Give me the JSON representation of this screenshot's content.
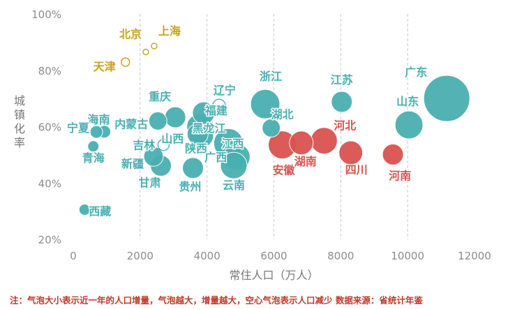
{
  "chart_data": {
    "type": "scatter",
    "subtype": "bubble",
    "xlabel": "常住人口（万人）",
    "ylabel": "城镇化率",
    "xlim": [
      0,
      12000
    ],
    "ylim": [
      20,
      100
    ],
    "xticks": [
      "0",
      "2000",
      "4000",
      "6000",
      "8000",
      "10000",
      "12000"
    ],
    "yticks": [
      "20%",
      "40%",
      "60%",
      "80%",
      "100%"
    ],
    "grid": "vertical dashed",
    "colors": {
      "gold": "#c8a21e",
      "teal": "#4aafb1",
      "red": "#d9534f",
      "axis": "#8c8c8c"
    },
    "points": [
      {
        "label": "上海",
        "x": 2420,
        "y": 88.6,
        "size": 1,
        "group": "gold",
        "hollow": true
      },
      {
        "label": "北京",
        "x": 2170,
        "y": 86.5,
        "size": 1,
        "group": "gold",
        "hollow": true
      },
      {
        "label": "天津",
        "x": 1560,
        "y": 82.9,
        "size": 3,
        "group": "gold",
        "hollow": true
      },
      {
        "label": "广东",
        "x": 11170,
        "y": 70.0,
        "size": 30,
        "group": "teal",
        "hollow": false
      },
      {
        "label": "江苏",
        "x": 8030,
        "y": 68.8,
        "size": 12,
        "group": "teal",
        "hollow": false
      },
      {
        "label": "浙江",
        "x": 5740,
        "y": 68.0,
        "size": 18,
        "group": "teal",
        "hollow": false
      },
      {
        "label": "辽宁",
        "x": 4360,
        "y": 67.5,
        "size": 6,
        "group": "teal",
        "hollow": true
      },
      {
        "label": "福建",
        "x": 3900,
        "y": 64.8,
        "size": 13,
        "group": "teal",
        "hollow": false
      },
      {
        "label": "山东",
        "x": 10040,
        "y": 60.6,
        "size": 17,
        "group": "teal",
        "hollow": false
      },
      {
        "label": "重庆",
        "x": 3050,
        "y": 63.3,
        "size": 12,
        "group": "teal",
        "hollow": false
      },
      {
        "label": "湖北",
        "x": 5920,
        "y": 59.5,
        "size": 10,
        "group": "teal",
        "hollow": false
      },
      {
        "label": "内蒙古",
        "x": 2530,
        "y": 62.0,
        "size": 10,
        "group": "teal",
        "hollow": false
      },
      {
        "label": "海南",
        "x": 930,
        "y": 58.2,
        "size": 6,
        "group": "teal",
        "hollow": false
      },
      {
        "label": "宁夏",
        "x": 690,
        "y": 58.1,
        "size": 6,
        "group": "teal",
        "hollow": false
      },
      {
        "label": "黑龙江",
        "x": 3770,
        "y": 60.0,
        "size": 15,
        "group": "teal",
        "hollow": false
      },
      {
        "label": "山西",
        "x": 3720,
        "y": 57.3,
        "size": 12,
        "group": "teal",
        "hollow": false
      },
      {
        "label": "吉林",
        "x": 2700,
        "y": 53.5,
        "size": 5,
        "group": "teal",
        "hollow": true
      },
      {
        "label": "青海",
        "x": 600,
        "y": 53.0,
        "size": 5,
        "group": "teal",
        "hollow": false
      },
      {
        "label": "陕西",
        "x": 3840,
        "y": 56.8,
        "size": 14,
        "group": "teal",
        "hollow": false
      },
      {
        "label": "江西",
        "x": 4640,
        "y": 54.1,
        "size": 18,
        "group": "teal",
        "hollow": false
      },
      {
        "label": "新疆",
        "x": 2400,
        "y": 49.4,
        "size": 11,
        "group": "teal",
        "hollow": false
      },
      {
        "label": "广西",
        "x": 4890,
        "y": 49.2,
        "size": 16,
        "group": "teal",
        "hollow": false
      },
      {
        "label": "甘肃",
        "x": 2620,
        "y": 46.1,
        "size": 12,
        "group": "teal",
        "hollow": false
      },
      {
        "label": "贵州",
        "x": 3580,
        "y": 45.3,
        "size": 12,
        "group": "teal",
        "hollow": false
      },
      {
        "label": "云南",
        "x": 4800,
        "y": 46.2,
        "size": 16,
        "group": "teal",
        "hollow": false
      },
      {
        "label": "西藏",
        "x": 340,
        "y": 30.5,
        "size": 5,
        "group": "teal",
        "hollow": false
      },
      {
        "label": "安徽",
        "x": 6250,
        "y": 53.5,
        "size": 17,
        "group": "red",
        "hollow": false
      },
      {
        "label": "湖南",
        "x": 6820,
        "y": 54.2,
        "size": 14,
        "group": "red",
        "hollow": false
      },
      {
        "label": "河北",
        "x": 7500,
        "y": 55.0,
        "size": 16,
        "group": "red",
        "hollow": false
      },
      {
        "label": "四川",
        "x": 8300,
        "y": 50.7,
        "size": 14,
        "group": "red",
        "hollow": false
      },
      {
        "label": "河南",
        "x": 9560,
        "y": 50.1,
        "size": 12,
        "group": "red",
        "hollow": false
      }
    ]
  },
  "note": "注：气泡大小表示近一年的人口增量，气泡越大，增量越大，空心气泡表示人口减少  数据来源：省统计年鉴"
}
